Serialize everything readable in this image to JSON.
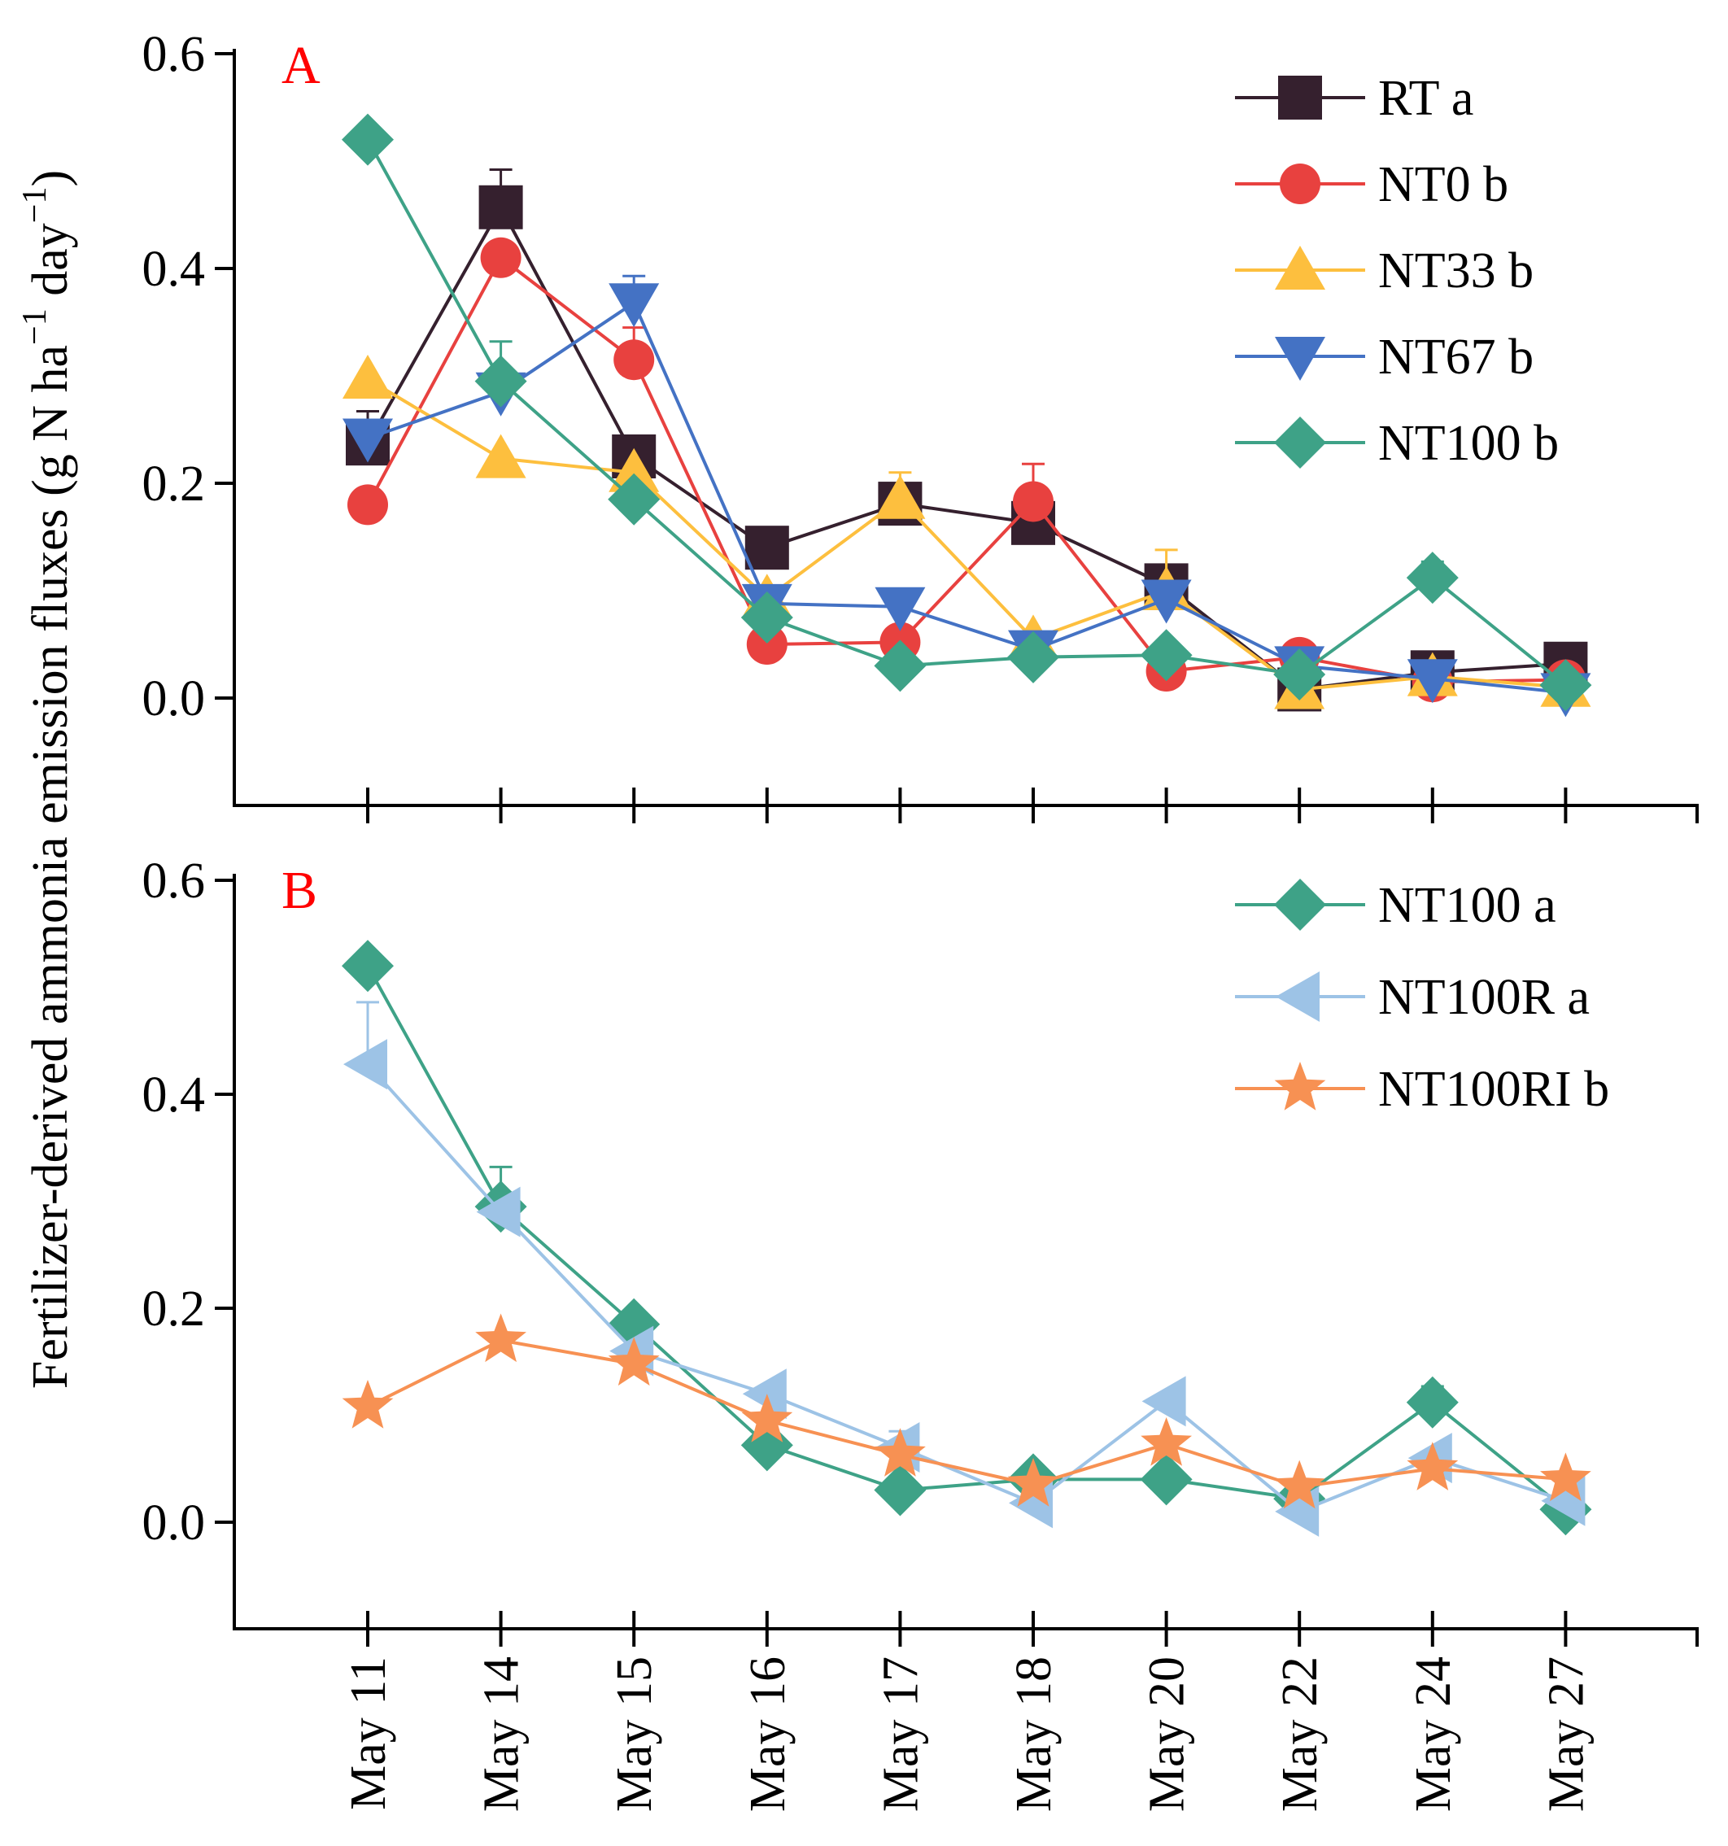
{
  "chart_data": {
    "type": "line",
    "ylabel": "Fertilizer-derived ammonia emission fluxes (g N ha⁻¹ day⁻¹)",
    "ylabel_parts": {
      "main": "Fertilizer-derived ammonia emission fluxes (g N ha",
      "sup1": "−1",
      "mid": " day",
      "sup2": "−1",
      "end": ")"
    },
    "categories": [
      "May 11",
      "May 14",
      "May 15",
      "May 16",
      "May 17",
      "May 18",
      "May 20",
      "May 22",
      "May 24",
      "May 27"
    ],
    "ylim": [
      -0.1,
      0.6
    ],
    "yticks": [
      0.0,
      0.2,
      0.4,
      0.6
    ],
    "ytick_labels": [
      "0.0",
      "0.2",
      "0.4",
      "0.6"
    ],
    "panels": [
      {
        "label": "A",
        "label_color": "#ff0000",
        "series": [
          {
            "name": "RT a",
            "color": "#35202e",
            "marker": "square",
            "values": [
              0.237,
              0.457,
              0.225,
              0.14,
              0.181,
              0.163,
              0.105,
              0.008,
              0.024,
              0.032
            ],
            "errors": [
              0.03,
              0.035,
              0.0,
              0.0,
              0.0,
              0.0,
              0.0,
              0.0,
              0.0,
              0.0
            ]
          },
          {
            "name": "NT0 b",
            "color": "#e8413f",
            "marker": "circle",
            "values": [
              0.18,
              0.41,
              0.315,
              0.05,
              0.052,
              0.183,
              0.025,
              0.038,
              0.015,
              0.017
            ],
            "errors": [
              0.0,
              0.0,
              0.03,
              0.0,
              0.0,
              0.035,
              0.0,
              0.0,
              0.0,
              0.0
            ]
          },
          {
            "name": "NT33 b",
            "color": "#fdbf3e",
            "marker": "triangle-up",
            "values": [
              0.297,
              0.223,
              0.21,
              0.093,
              0.185,
              0.055,
              0.1,
              0.008,
              0.02,
              0.01
            ],
            "errors": [
              0.0,
              0.0,
              0.0,
              0.0,
              0.025,
              0.0,
              0.038,
              0.0,
              0.0,
              0.0
            ]
          },
          {
            "name": "NT67 b",
            "color": "#4472c4",
            "marker": "triangle-down",
            "values": [
              0.242,
              0.285,
              0.368,
              0.088,
              0.085,
              0.045,
              0.092,
              0.03,
              0.018,
              0.005
            ],
            "errors": [
              0.0,
              0.0,
              0.025,
              0.0,
              0.0,
              0.0,
              0.0,
              0.0,
              0.0,
              0.0
            ]
          },
          {
            "name": "NT100 b",
            "color": "#3ea287",
            "marker": "diamond",
            "values": [
              0.52,
              0.295,
              0.185,
              0.075,
              0.03,
              0.038,
              0.04,
              0.022,
              0.112,
              0.012
            ],
            "errors": [
              0.0,
              0.037,
              0.0,
              0.0,
              0.0,
              0.0,
              0.0,
              0.0,
              0.015,
              0.0
            ]
          }
        ]
      },
      {
        "label": "B",
        "label_color": "#ff0000",
        "series": [
          {
            "name": "NT100 a",
            "color": "#3ea287",
            "marker": "diamond",
            "values": [
              0.52,
              0.295,
              0.185,
              0.072,
              0.03,
              0.04,
              0.04,
              0.022,
              0.112,
              0.012
            ],
            "errors": [
              0.0,
              0.037,
              0.0,
              0.0,
              0.0,
              0.0,
              0.0,
              0.0,
              0.015,
              0.0
            ]
          },
          {
            "name": "NT100R a",
            "color": "#9dc3e6",
            "marker": "triangle-left",
            "values": [
              0.428,
              0.29,
              0.16,
              0.12,
              0.07,
              0.018,
              0.113,
              0.01,
              0.06,
              0.02
            ],
            "errors": [
              0.058,
              0.0,
              0.0,
              0.0,
              0.015,
              0.0,
              0.0,
              0.0,
              0.0,
              0.0
            ]
          },
          {
            "name": "NT100RI b",
            "color": "#f79153",
            "marker": "star",
            "values": [
              0.108,
              0.17,
              0.148,
              0.095,
              0.063,
              0.035,
              0.073,
              0.033,
              0.05,
              0.04
            ],
            "errors": [
              0.0,
              0.0,
              0.0,
              0.0,
              0.0,
              0.0,
              0.0,
              0.0,
              0.0,
              0.0
            ]
          }
        ]
      }
    ]
  }
}
